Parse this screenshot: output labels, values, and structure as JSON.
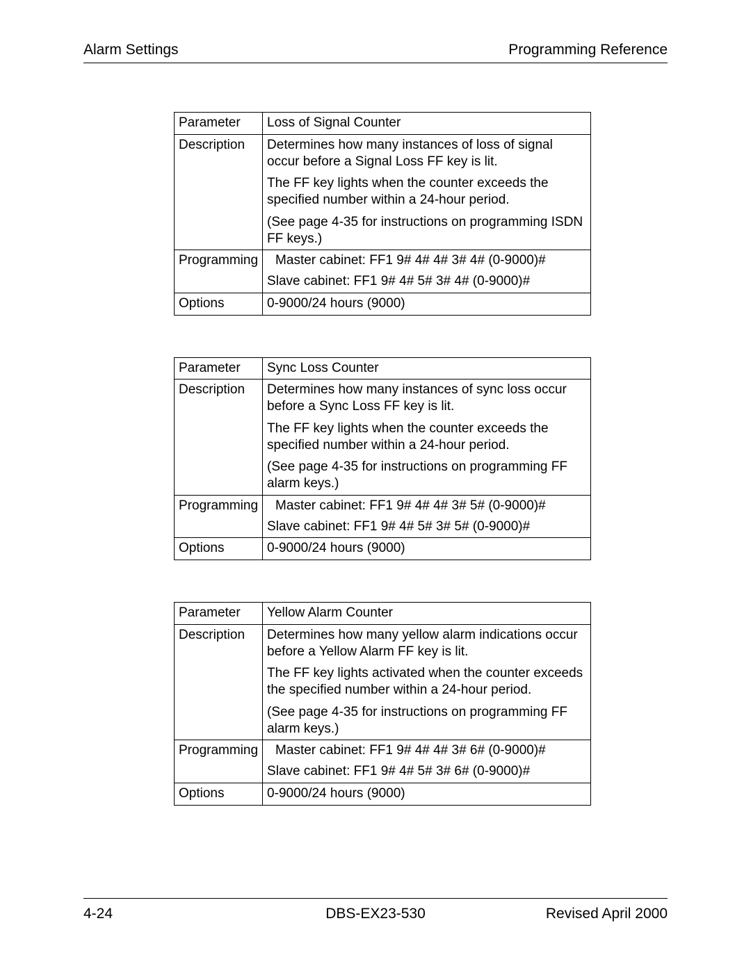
{
  "header": {
    "left": "Alarm Settings",
    "right": "Programming Reference"
  },
  "tables": [
    {
      "parameter_label": "Parameter",
      "parameter_value": "Loss of Signal Counter",
      "description_label": "Description",
      "description_paragraphs": [
        "Determines how many instances of loss of signal occur before a Signal Loss  FF key is lit.",
        "The FF key lights when the counter exceeds the specified number within a 24-hour period.",
        "(See page 4-35 for instructions on programming ISDN FF keys.)"
      ],
      "programming_label": "Programming",
      "programming_lines": [
        "Master cabinet: FF1 9# 4# 4# 3# 4# (0-9000)#",
        "Slave cabinet: FF1 9# 4# 5# 3# 4# (0-9000)#"
      ],
      "options_label": "Options",
      "options_value": "0-9000/24 hours (9000)"
    },
    {
      "parameter_label": "Parameter",
      "parameter_value": "Sync Loss Counter",
      "description_label": "Description",
      "description_paragraphs": [
        "Determines how many instances of sync loss occur before a Sync Loss  FF key is lit.",
        "The FF key lights when the counter exceeds the specified number within a 24-hour period.",
        "(See page 4-35 for instructions on programming FF alarm keys.)"
      ],
      "programming_label": "Programming",
      "programming_lines": [
        "Master cabinet: FF1 9# 4# 4# 3# 5# (0-9000)#",
        "Slave cabinet: FF1 9# 4# 5# 3# 5# (0-9000)#"
      ],
      "options_label": "Options",
      "options_value": "0-9000/24 hours (9000)"
    },
    {
      "parameter_label": "Parameter",
      "parameter_value": "Yellow Alarm Counter",
      "description_label": "Description",
      "description_paragraphs": [
        "Determines how many yellow alarm indications occur before a Yellow Alarm FF key is lit.",
        "The FF key lights activated when the counter exceeds the specified number within a 24-hour period.",
        "(See page 4-35 for instructions on programming FF alarm keys.)"
      ],
      "programming_label": "Programming",
      "programming_lines": [
        "Master cabinet: FF1 9# 4# 4# 3# 6# (0-9000)#",
        "Slave cabinet: FF1 9# 4# 5# 3# 6# (0-9000)#"
      ],
      "options_label": "Options",
      "options_value": "0-9000/24 hours (9000)"
    }
  ],
  "footer": {
    "left": "4-24",
    "center": "DBS-EX23-530",
    "right": "Revised April 2000"
  }
}
